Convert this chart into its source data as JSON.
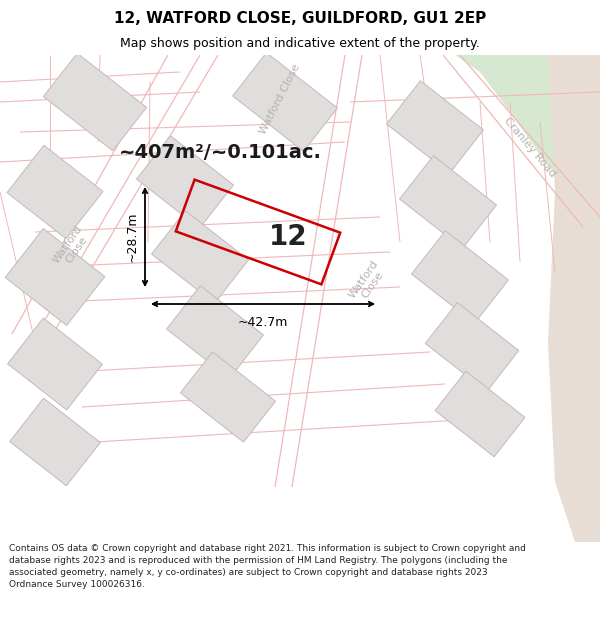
{
  "title": "12, WATFORD CLOSE, GUILDFORD, GU1 2EP",
  "subtitle": "Map shows position and indicative extent of the property.",
  "area_label": "~407m²/~0.101ac.",
  "property_number": "12",
  "dim_width": "~42.7m",
  "dim_height": "~28.7m",
  "copyright_text": "Contains OS data © Crown copyright and database right 2021. This information is subject to Crown copyright and database rights 2023 and is reproduced with the permission of HM Land Registry. The polygons (including the associated geometry, namely x, y co-ordinates) are subject to Crown copyright and database rights 2023 Ordnance Survey 100026316.",
  "map_bg": "#f2f0f0",
  "road_line_color": "#f0b8b8",
  "building_face": "#e0dddd",
  "building_edge": "#c8b8b8",
  "property_outline": "#cc0000",
  "green_color": "#d6e8d0",
  "tan_color": "#e8ddd4",
  "street_label_color": "#b8b0b0",
  "annotation_color": "#1a1a1a",
  "title_fontsize": 11,
  "subtitle_fontsize": 9,
  "area_fontsize": 14,
  "number_fontsize": 20,
  "dim_fontsize": 9,
  "street_fontsize": 8,
  "copy_fontsize": 6.5
}
